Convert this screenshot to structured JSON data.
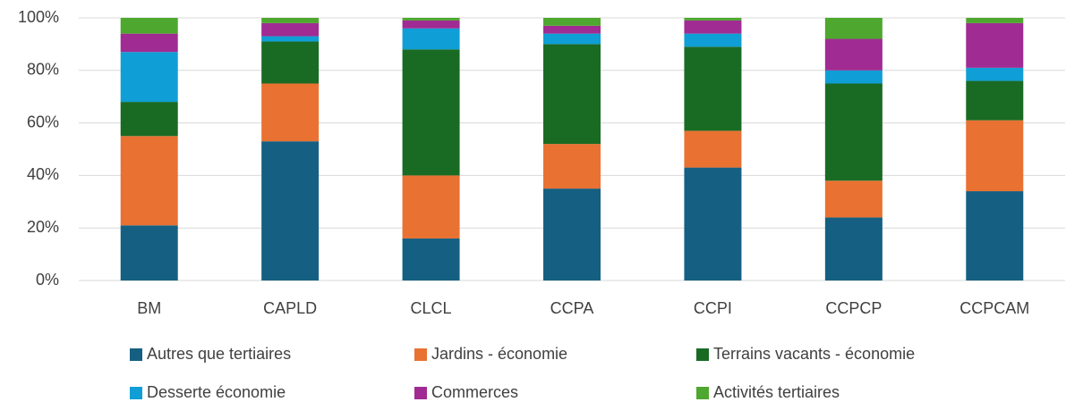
{
  "chart_data": {
    "type": "bar",
    "stacked": true,
    "categories": [
      "BM",
      "CAPLD",
      "CLCL",
      "CCPA",
      "CCPI",
      "CCPCP",
      "CCPCAM"
    ],
    "series": [
      {
        "name": "Autres que tertiaires",
        "color": "#156082",
        "values": [
          21,
          53,
          16,
          35,
          43,
          24,
          34
        ]
      },
      {
        "name": "Jardins - économie",
        "color": "#e97132",
        "values": [
          34,
          22,
          24,
          17,
          14,
          14,
          27
        ]
      },
      {
        "name": "Terrains vacants - économie",
        "color": "#196b24",
        "values": [
          13,
          16,
          48,
          38,
          32,
          37,
          15
        ]
      },
      {
        "name": "Desserte économie",
        "color": "#0f9ed5",
        "values": [
          19,
          2,
          8,
          4,
          5,
          5,
          5
        ]
      },
      {
        "name": "Commerces",
        "color": "#a02b93",
        "values": [
          7,
          5,
          3,
          3,
          5,
          12,
          17
        ]
      },
      {
        "name": "Activités tertiaires",
        "color": "#4ea72e",
        "values": [
          6,
          2,
          1,
          3,
          1,
          8,
          2
        ]
      }
    ],
    "ylim": [
      0,
      100
    ],
    "yticks": [
      {
        "value": 0,
        "label": "0%"
      },
      {
        "value": 20,
        "label": "20%"
      },
      {
        "value": 40,
        "label": "40%"
      },
      {
        "value": 60,
        "label": "60%"
      },
      {
        "value": 80,
        "label": "80%"
      },
      {
        "value": 100,
        "label": "100%"
      }
    ],
    "grid": true,
    "legend": "bottom"
  }
}
